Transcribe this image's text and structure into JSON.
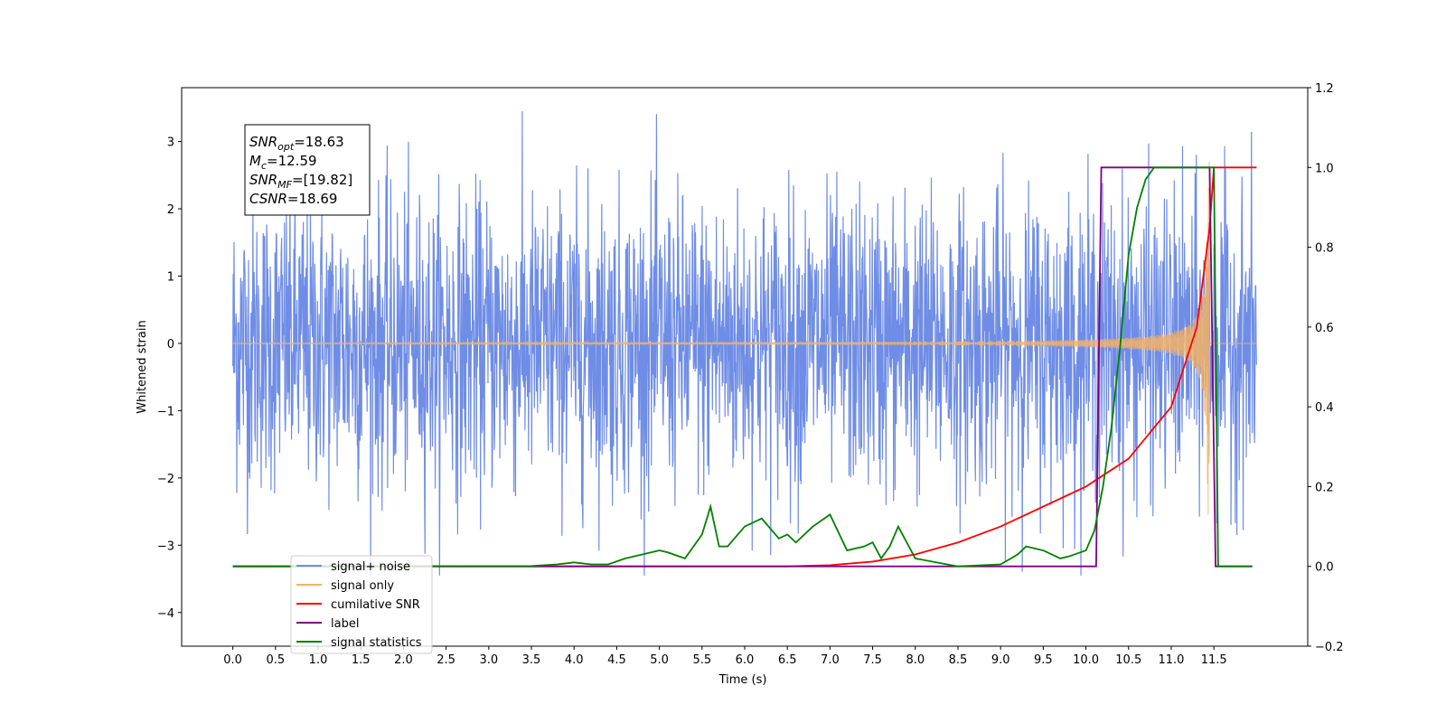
{
  "chart_data": {
    "type": "line",
    "xlabel": "Time (s)",
    "ylabel": "Whitened strain",
    "xlim": [
      -0.6,
      12.6
    ],
    "ylim": [
      -4.5,
      3.8
    ],
    "y2lim": [
      -0.2,
      1.2
    ],
    "x_ticks": [
      "0.0",
      "0.5",
      "1.0",
      "1.5",
      "2.0",
      "2.5",
      "3.0",
      "3.5",
      "4.0",
      "4.5",
      "5.0",
      "5.5",
      "6.0",
      "6.5",
      "7.0",
      "7.5",
      "8.0",
      "8.5",
      "9.0",
      "9.5",
      "10.0",
      "10.5",
      "11.0",
      "11.5"
    ],
    "y_ticks": [
      3,
      2,
      1,
      0,
      -1,
      -2,
      -3,
      -4
    ],
    "y_tick_labels": [
      "3",
      "2",
      "1",
      "0",
      "−1",
      "−2",
      "−3",
      "−4"
    ],
    "y2_ticks": [
      "1.2",
      "1.0",
      "0.8",
      "0.6",
      "0.4",
      "0.2",
      "0.0",
      "−0.2"
    ],
    "y2_tick_values": [
      1.2,
      1.0,
      0.8,
      0.6,
      0.4,
      0.2,
      0.0,
      -0.2
    ],
    "grid": false,
    "legend_position": "bottom-left",
    "annotation": {
      "lines": [
        {
          "sym": "SNR",
          "sub": "opt",
          "value": "=18.63"
        },
        {
          "sym": "M",
          "sub": "c",
          "value": "=12.59"
        },
        {
          "sym": "SNR",
          "sub": "MF",
          "value": "=[19.82]"
        },
        {
          "sym": "CSNR",
          "sub": "",
          "value": "=18.69"
        }
      ]
    },
    "series": [
      {
        "name": "signal+ noise",
        "color": "#6f8de6",
        "axis": "left",
        "kind": "noise_band",
        "t_start": 0.0,
        "t_end": 12.0,
        "amplitude_typical": 1.8,
        "amplitude_max": 3.45
      },
      {
        "name": "signal only",
        "color": "#f5b266",
        "axis": "left",
        "kind": "chirp",
        "t_start": 0.0,
        "t_merger": 11.45,
        "t_end": 12.0,
        "peak_amplitude": 2.7
      },
      {
        "name": "cumilative SNR",
        "color": "#ff0000",
        "axis": "right",
        "x": [
          0.0,
          6.5,
          7.0,
          7.5,
          8.0,
          8.5,
          9.0,
          9.5,
          10.0,
          10.5,
          11.0,
          11.3,
          11.45,
          11.5,
          12.0
        ],
        "y": [
          0.0,
          0.0,
          0.003,
          0.012,
          0.03,
          0.06,
          0.1,
          0.15,
          0.2,
          0.27,
          0.4,
          0.6,
          0.85,
          1.0,
          1.0
        ]
      },
      {
        "name": "label",
        "color": "#800080",
        "axis": "right",
        "x": [
          0.0,
          10.12,
          10.18,
          11.45,
          11.52,
          11.95
        ],
        "y": [
          0.0,
          0.0,
          1.0,
          1.0,
          0.0,
          0.0
        ]
      },
      {
        "name": "signal statistics",
        "color": "#008000",
        "axis": "right",
        "x": [
          0.0,
          3.5,
          3.8,
          4.0,
          4.2,
          4.4,
          4.6,
          4.8,
          5.0,
          5.1,
          5.3,
          5.5,
          5.6,
          5.7,
          5.8,
          6.0,
          6.2,
          6.4,
          6.5,
          6.6,
          6.8,
          7.0,
          7.2,
          7.4,
          7.5,
          7.6,
          7.7,
          7.8,
          8.0,
          8.5,
          9.0,
          9.2,
          9.3,
          9.5,
          9.7,
          9.8,
          10.0,
          10.1,
          10.2,
          10.3,
          10.4,
          10.5,
          10.6,
          10.7,
          10.8,
          11.5,
          11.55,
          11.95
        ],
        "y": [
          0.0,
          0.001,
          0.005,
          0.01,
          0.005,
          0.005,
          0.02,
          0.03,
          0.04,
          0.035,
          0.02,
          0.08,
          0.15,
          0.05,
          0.05,
          0.1,
          0.12,
          0.07,
          0.08,
          0.06,
          0.1,
          0.13,
          0.04,
          0.05,
          0.06,
          0.02,
          0.05,
          0.1,
          0.02,
          0.0,
          0.005,
          0.03,
          0.05,
          0.04,
          0.02,
          0.025,
          0.04,
          0.09,
          0.2,
          0.35,
          0.55,
          0.78,
          0.9,
          0.97,
          1.0,
          1.0,
          0.0,
          0.0
        ]
      }
    ],
    "legend_entries": [
      {
        "name": "signal+ noise",
        "color": "#6f8de6"
      },
      {
        "name": "signal only",
        "color": "#f5b266"
      },
      {
        "name": "cumilative SNR",
        "color": "#ff0000"
      },
      {
        "name": "label",
        "color": "#800080"
      },
      {
        "name": "signal statistics",
        "color": "#008000"
      }
    ]
  }
}
